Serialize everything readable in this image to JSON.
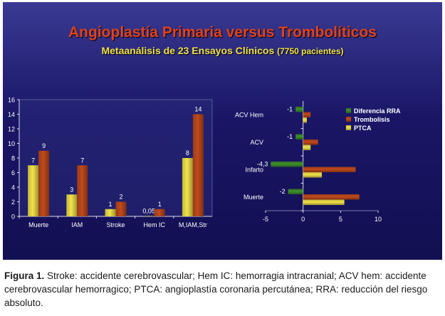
{
  "title": "Angioplastía Primaria versus Trombolíticos",
  "subtitle_main": "Metaanálisis de 23 Ensayos Clínicos",
  "subtitle_paren": "(7750 pacientes)",
  "caption_label": "Figura 1.",
  "caption_text": "Stroke: accidente cerebrovascular; Hem IC: hemorragia intracranial; ACV hem: accidente cerebrovascular hemorragico; PTCA: angioplastía coronaria percutánea; RRA: reducción del riesgo absoluto.",
  "colors": {
    "ptca": "#f2e24a",
    "trombolisis": "#c14a1c",
    "diferencia": "#3e8f2e"
  },
  "chart_data": [
    {
      "type": "bar",
      "categories": [
        "Muerte",
        "IAM",
        "Stroke",
        "Hem IC",
        "M,IAM,Str"
      ],
      "series": [
        {
          "values": [
            7,
            3,
            1,
            0.05,
            8
          ],
          "labels": [
            "7",
            "3",
            "1",
            "0,05",
            "8"
          ]
        },
        {
          "values": [
            9,
            7,
            2,
            1,
            14
          ],
          "labels": [
            "9",
            "7",
            "2",
            "1",
            "14"
          ]
        }
      ],
      "ylim": [
        0,
        16
      ],
      "yticks": [
        "0",
        "2",
        "4",
        "6",
        "8",
        "10",
        "12",
        "14",
        "16"
      ],
      "grid": false
    },
    {
      "type": "bar",
      "orientation": "horizontal",
      "categories": [
        "ACV Hem",
        "ACV",
        "Infarto",
        "Muerte"
      ],
      "series": [
        {
          "name": "Diferencia RRA",
          "values": [
            -1,
            -1,
            -4.3,
            -2
          ],
          "labels": [
            "-1",
            "-1",
            "-4,3",
            "-2"
          ]
        },
        {
          "name": "Trombolisis",
          "values": [
            1,
            2,
            7,
            7.5
          ]
        },
        {
          "name": "PTCA",
          "values": [
            0.5,
            1,
            2.5,
            5.5
          ]
        }
      ],
      "xlim": [
        -5,
        10
      ],
      "xticks": [
        "-5",
        "0",
        "5",
        "10"
      ],
      "legend": "top-right",
      "grid": false
    }
  ]
}
